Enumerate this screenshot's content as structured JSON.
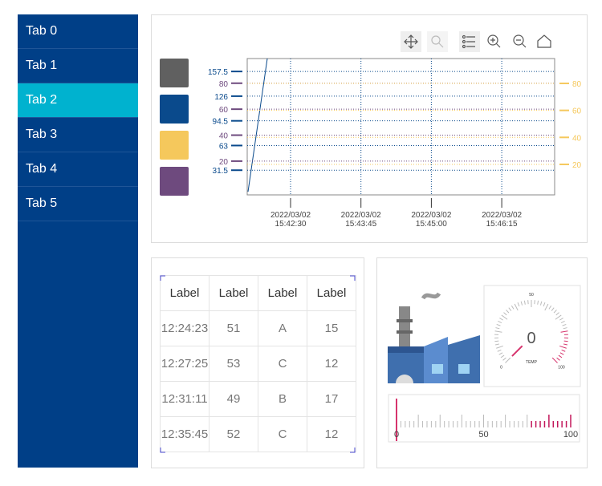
{
  "sidebar": {
    "tabs": [
      "Tab 0",
      "Tab 1",
      "Tab 2",
      "Tab 3",
      "Tab 4",
      "Tab 5"
    ],
    "selected": 2
  },
  "chart": {
    "legend_colors": [
      "#606060",
      "#0a4a8c",
      "#f5c85c",
      "#6e4a7e"
    ],
    "left_axis_blue": {
      "color": "#0a4a8c",
      "ylim": [
        0,
        174
      ],
      "ticks": [
        31.5,
        63,
        94.5,
        126,
        157.5
      ]
    },
    "left_axis_purple": {
      "color": "#6e4a7e",
      "ylim": [
        -6,
        99
      ],
      "ticks": [
        20,
        40,
        60,
        80
      ]
    },
    "right_axis": {
      "color": "#f5c85c",
      "ylim": [
        -2.6,
        98.4
      ],
      "ticks": [
        20,
        40,
        60,
        80
      ]
    },
    "x_ticks": [
      [
        "2022/03/02",
        "15:42:30"
      ],
      [
        "2022/03/02",
        "15:43:45"
      ],
      [
        "2022/03/02",
        "15:45:00"
      ],
      [
        "2022/03/02",
        "15:46:15"
      ]
    ]
  },
  "table": {
    "header": [
      "Label",
      "Label",
      "Label",
      "Label"
    ],
    "rows": [
      [
        "12:24:23",
        "51",
        "A",
        "15"
      ],
      [
        "12:27:25",
        "53",
        "C",
        "12"
      ],
      [
        "12:31:11",
        "49",
        "B",
        "17"
      ],
      [
        "12:35:45",
        "52",
        "C",
        "12"
      ]
    ]
  },
  "gauge": {
    "value": 0,
    "label": "TEMP",
    "min": 0,
    "mid": 50,
    "max": 100
  },
  "linear_gauge": {
    "value": 0,
    "min": 0,
    "mid": 50,
    "max": 100
  }
}
